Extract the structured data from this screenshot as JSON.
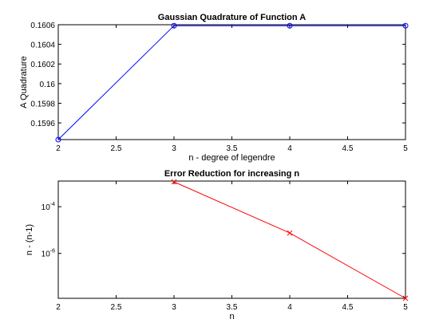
{
  "chart_data": [
    {
      "type": "line",
      "title": "Gaussian Quadrature of Function A",
      "xlabel": "n - degree of legendre",
      "ylabel": "A Quadrature",
      "xlim": [
        2,
        5
      ],
      "ylim": [
        0.15943,
        0.1606
      ],
      "x_ticks": [
        2,
        2.5,
        3,
        3.5,
        4,
        4.5,
        5
      ],
      "y_ticks": [
        0.1596,
        0.1598,
        0.16,
        0.1602,
        0.1604,
        0.1606
      ],
      "y_tick_labels": [
        "0.1596",
        "0.1598",
        "0.16",
        "0.1602",
        "0.1604",
        "0.1606"
      ],
      "y_scale": "linear",
      "grid": false,
      "series": [
        {
          "x": [
            2,
            3,
            4,
            5
          ],
          "values": [
            0.15943,
            0.16059,
            0.16059,
            0.16059
          ],
          "color": "#0000ff",
          "marker": "circle"
        }
      ]
    },
    {
      "type": "line",
      "title": "Error Reduction for increasing n",
      "xlabel": "n",
      "ylabel": "n - (n-1)",
      "xlim": [
        2,
        5
      ],
      "ylim": [
        1.2e-08,
        0.00125
      ],
      "x_ticks": [
        2,
        2.5,
        3,
        3.5,
        4,
        4.5,
        5
      ],
      "y_ticks": [
        0.0001,
        1e-06
      ],
      "y_tick_labels": [
        {
          "base": "10",
          "exp": "-4"
        },
        {
          "base": "10",
          "exp": "-6"
        }
      ],
      "y_scale": "log",
      "grid": false,
      "series": [
        {
          "x": [
            3,
            4,
            5
          ],
          "values": [
            0.00116,
            7.5e-06,
            1.2e-08
          ],
          "color": "#ff0000",
          "marker": "x"
        }
      ]
    }
  ]
}
